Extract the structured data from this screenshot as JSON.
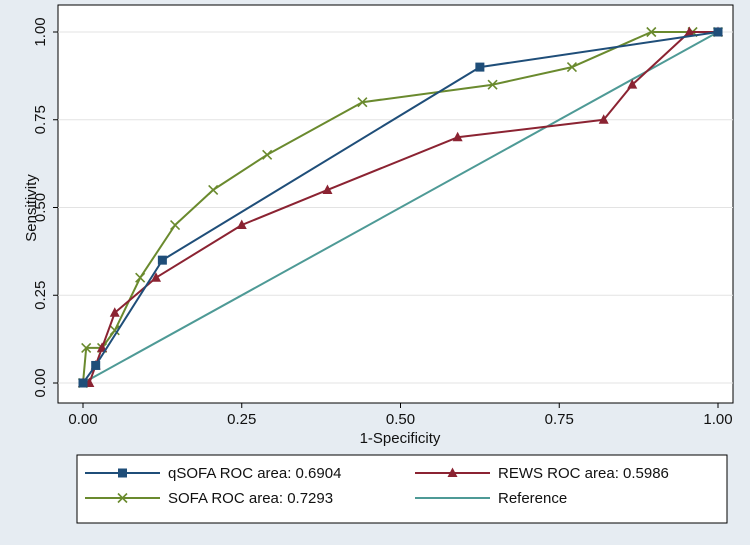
{
  "chart_data": {
    "type": "line",
    "title": "",
    "xlabel": "1-Specificity",
    "ylabel": "Sensitivity",
    "xlim": [
      0,
      1
    ],
    "ylim": [
      0,
      1
    ],
    "x_ticks": [
      "0.00",
      "0.25",
      "0.50",
      "0.75",
      "1.00"
    ],
    "y_ticks": [
      "0.00",
      "0.25",
      "0.50",
      "0.75",
      "1.00"
    ],
    "grid": "horizontal",
    "legend_position": "bottom",
    "series": [
      {
        "name": "qSOFA ROC area: 0.6904",
        "color": "#1f4e79",
        "marker": "square",
        "x": [
          0,
          0.02,
          0.125,
          0.625,
          1.0
        ],
        "y": [
          0,
          0.05,
          0.35,
          0.9,
          1.0
        ]
      },
      {
        "name": "REWS ROC area: 0.5986",
        "color": "#8b2332",
        "marker": "triangle",
        "x": [
          0,
          0.01,
          0.02,
          0.03,
          0.05,
          0.115,
          0.25,
          0.385,
          0.59,
          0.82,
          0.865,
          0.955,
          1.0
        ],
        "y": [
          0,
          0,
          0.05,
          0.1,
          0.2,
          0.3,
          0.45,
          0.55,
          0.7,
          0.75,
          0.85,
          1.0,
          1.0
        ]
      },
      {
        "name": "SOFA ROC area: 0.7293",
        "color": "#6a8a2e",
        "marker": "x",
        "x": [
          0,
          0.005,
          0.03,
          0.05,
          0.09,
          0.145,
          0.205,
          0.29,
          0.44,
          0.645,
          0.77,
          0.895,
          0.96,
          1.0
        ],
        "y": [
          0,
          0.1,
          0.1,
          0.15,
          0.3,
          0.45,
          0.55,
          0.65,
          0.8,
          0.85,
          0.9,
          1.0,
          1.0,
          1.0
        ]
      },
      {
        "name": "Reference",
        "color": "#4e9a96",
        "marker": "none",
        "x": [
          0,
          1
        ],
        "y": [
          0,
          1
        ]
      }
    ]
  }
}
